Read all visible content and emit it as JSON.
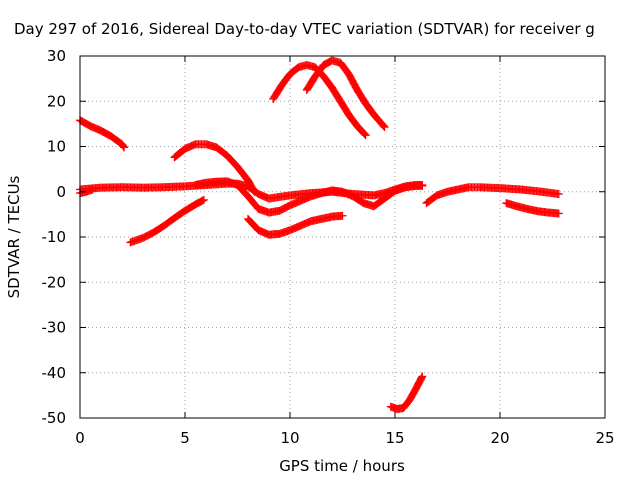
{
  "chart_data": {
    "type": "scatter",
    "title": "Day 297 of 2016, Sidereal Day-to-day VTEC variation (SDTVAR) for receiver g",
    "xlabel": "GPS time / hours",
    "ylabel": "SDTVAR / TECUs",
    "xlim": [
      0,
      25
    ],
    "ylim": [
      -50,
      30
    ],
    "xticks": [
      0,
      5,
      10,
      15,
      20,
      25
    ],
    "yticks": [
      -50,
      -40,
      -30,
      -20,
      -10,
      0,
      10,
      20,
      30
    ],
    "xtick_labels": [
      "0",
      "5",
      "10",
      "15",
      "20",
      "25"
    ],
    "ytick_labels": [
      "-50",
      "-40",
      "-30",
      "-20",
      "-10",
      "0",
      "10",
      "20",
      "30"
    ],
    "grid": true,
    "marker": "plus",
    "color": "#ff0000",
    "series": [
      {
        "x": [
          0.0,
          0.5,
          1.0,
          1.5,
          2.0,
          2.1
        ],
        "y": [
          15.8,
          14.5,
          13.5,
          12.2,
          10.5,
          9.8
        ]
      },
      {
        "x": [
          2.4,
          3.0,
          3.5,
          4.0,
          4.5,
          5.0,
          5.5,
          5.9
        ],
        "y": [
          -11.2,
          -10.2,
          -9.0,
          -7.5,
          -5.8,
          -4.2,
          -2.8,
          -1.8
        ]
      },
      {
        "x": [
          4.5,
          5.0,
          5.5,
          6.0,
          6.5,
          7.0,
          7.5,
          8.0,
          8.3
        ],
        "y": [
          7.6,
          9.5,
          10.5,
          10.5,
          9.8,
          8.0,
          5.5,
          2.5,
          0.0
        ]
      },
      {
        "x": [
          0.0,
          1.0,
          2.0,
          3.0,
          4.0,
          5.0,
          6.0,
          7.0,
          7.5,
          8.0,
          8.5,
          9.0,
          10.0,
          11.0,
          12.0,
          13.0,
          14.0,
          14.5,
          15.0,
          15.5,
          16.0,
          16.3
        ],
        "y": [
          0.5,
          0.9,
          1.0,
          0.9,
          1.0,
          1.2,
          1.5,
          1.8,
          1.8,
          1.2,
          -0.5,
          -1.5,
          -0.8,
          -0.3,
          0.0,
          -0.5,
          -0.8,
          -0.3,
          0.5,
          1.2,
          1.5,
          1.5
        ]
      },
      {
        "x": [
          0.0,
          0.3,
          0.6
        ],
        "y": [
          -0.3,
          0.0,
          0.5
        ]
      },
      {
        "x": [
          5.5,
          6.0,
          6.5,
          7.0,
          7.5,
          8.0,
          8.5,
          9.0,
          9.5,
          10.0,
          10.5,
          11.0,
          11.5,
          12.0,
          12.5,
          13.0,
          13.5,
          14.0,
          14.5,
          15.0,
          15.5,
          16.0,
          16.3
        ],
        "y": [
          1.5,
          2.0,
          2.2,
          2.3,
          1.5,
          -1.0,
          -3.8,
          -4.6,
          -4.2,
          -3.0,
          -2.0,
          -1.0,
          -0.3,
          0.3,
          0.0,
          -1.0,
          -2.5,
          -3.2,
          -1.5,
          0.2,
          1.0,
          1.3,
          1.3
        ]
      },
      {
        "x": [
          8.0,
          8.5,
          9.0,
          9.5,
          10.0,
          10.5,
          11.0,
          11.5,
          12.0,
          12.5
        ],
        "y": [
          -6.0,
          -8.5,
          -9.5,
          -9.3,
          -8.5,
          -7.5,
          -6.5,
          -6.0,
          -5.5,
          -5.3
        ]
      },
      {
        "x": [
          9.2,
          9.6,
          10.0,
          10.4,
          10.8,
          11.2,
          11.6,
          12.0,
          12.4,
          12.8,
          13.2,
          13.6
        ],
        "y": [
          20.5,
          23.5,
          26.0,
          27.5,
          28.0,
          27.5,
          25.5,
          23.0,
          20.0,
          17.0,
          14.5,
          12.5
        ]
      },
      {
        "x": [
          10.8,
          11.2,
          11.6,
          12.0,
          12.4,
          12.8,
          13.2,
          13.6,
          14.0,
          14.5
        ],
        "y": [
          22.5,
          25.5,
          28.0,
          29.0,
          28.5,
          26.0,
          22.5,
          19.5,
          17.0,
          14.3
        ]
      },
      {
        "x": [
          14.8,
          15.1,
          15.4,
          15.7,
          16.0,
          16.3
        ],
        "y": [
          -47.5,
          -48.0,
          -47.8,
          -46.0,
          -43.5,
          -40.8
        ]
      },
      {
        "x": [
          16.5,
          17.0,
          17.5,
          18.0,
          18.5,
          19.0,
          20.0,
          21.0,
          22.0,
          22.8
        ],
        "y": [
          -2.5,
          -0.8,
          0.0,
          0.5,
          1.0,
          1.0,
          0.8,
          0.5,
          0.0,
          -0.5
        ]
      },
      {
        "x": [
          20.3,
          20.8,
          21.3,
          21.8,
          22.3,
          22.8
        ],
        "y": [
          -2.5,
          -3.2,
          -3.8,
          -4.3,
          -4.6,
          -4.8
        ]
      }
    ]
  }
}
